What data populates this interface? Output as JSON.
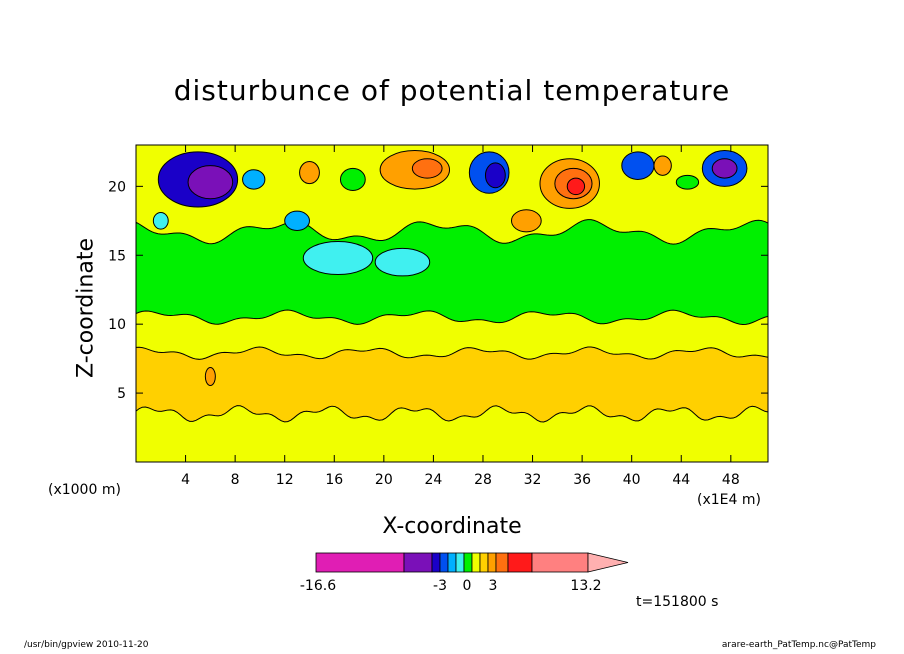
{
  "chart_data": {
    "type": "heatmap",
    "title": "disturbunce of potential temperature",
    "xlabel": "X-coordinate",
    "ylabel": "Z-coordinate",
    "x_units": "(x1000 m)",
    "x_scale": "(x1E4 m)",
    "xlim": [
      0,
      51
    ],
    "ylim": [
      0,
      23
    ],
    "x_ticks": [
      "4",
      "8",
      "12",
      "16",
      "20",
      "24",
      "28",
      "32",
      "36",
      "40",
      "44",
      "48"
    ],
    "y_ticks": [
      "5",
      "10",
      "15",
      "20"
    ],
    "time_label": "t=151800 s",
    "colorbar": {
      "min_label": "-16.6",
      "max_label": "13.2",
      "labels": [
        "-3",
        "0",
        "3"
      ],
      "colors": [
        "#e01eb4",
        "#7a10b8",
        "#1a00c8",
        "#0050f0",
        "#00b0ff",
        "#40f0f0",
        "#00f000",
        "#f0ff00",
        "#ffd000",
        "#ffa000",
        "#ff7010",
        "#ff1a1a",
        "#ff8080",
        "#ffb0b0"
      ]
    },
    "bands": [
      {
        "z_range": [
          0,
          3.5
        ],
        "value": "0 to 1",
        "color": "#f0ff00"
      },
      {
        "z_range": [
          3.5,
          8
        ],
        "value": "1 to 2",
        "color": "#ffd000"
      },
      {
        "z_range": [
          8,
          10.5
        ],
        "value": "0 to 1",
        "color": "#f0ff00"
      },
      {
        "z_range": [
          10.5,
          17
        ],
        "value": "-1 to 0",
        "color": "#00f000"
      },
      {
        "z_range": [
          17,
          23
        ],
        "value": "mixed -16.6 to 13.2",
        "color": "#f0ff00"
      }
    ]
  },
  "footer": {
    "left": "/usr/bin/gpview  2010-11-20",
    "right": "arare-earth_PatTemp.nc@PatTemp"
  }
}
